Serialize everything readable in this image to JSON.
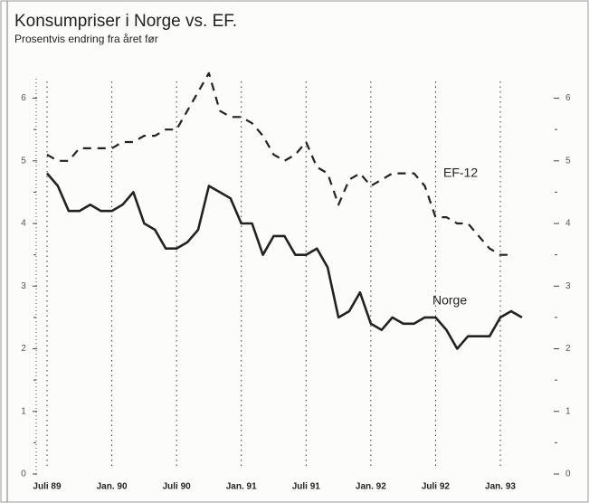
{
  "chart_data": {
    "type": "line",
    "title": "Konsumpriser i Norge vs. EF.",
    "subtitle": "Prosentvis endring fra året før",
    "categories": [
      "Juli 89",
      null,
      null,
      null,
      null,
      null,
      "Jan. 90",
      null,
      null,
      null,
      null,
      null,
      "Juli 90",
      null,
      null,
      null,
      null,
      null,
      "Jan. 91",
      null,
      null,
      null,
      null,
      null,
      "Juli 91",
      null,
      null,
      null,
      null,
      null,
      "Jan. 92",
      null,
      null,
      null,
      null,
      null,
      "Juli 92",
      null,
      null,
      null,
      null,
      null,
      "Jan. 93",
      null,
      null
    ],
    "series": [
      {
        "name": "EF-12",
        "color": "#222222",
        "dashed": true,
        "values": [
          5.1,
          5.0,
          5.0,
          5.2,
          5.2,
          5.2,
          5.2,
          5.3,
          5.3,
          5.4,
          5.4,
          5.5,
          5.5,
          5.8,
          6.1,
          6.4,
          5.8,
          5.7,
          5.7,
          5.6,
          5.4,
          5.1,
          5.0,
          5.1,
          5.3,
          4.9,
          4.8,
          4.3,
          4.7,
          4.8,
          4.6,
          4.7,
          4.8,
          4.8,
          4.8,
          4.6,
          4.1,
          4.1,
          4.0,
          4.0,
          3.8,
          3.6,
          3.5,
          3.5,
          null
        ]
      },
      {
        "name": "Norge",
        "color": "#222222",
        "dashed": false,
        "values": [
          4.8,
          4.6,
          4.2,
          4.2,
          4.3,
          4.2,
          4.2,
          4.3,
          4.5,
          4.0,
          3.9,
          3.6,
          3.6,
          3.7,
          3.9,
          4.6,
          4.5,
          4.4,
          4.0,
          4.0,
          3.5,
          3.8,
          3.8,
          3.5,
          3.5,
          3.6,
          3.3,
          2.5,
          2.6,
          2.9,
          2.4,
          2.3,
          2.5,
          2.4,
          2.4,
          2.5,
          2.5,
          2.3,
          2.0,
          2.2,
          2.2,
          2.2,
          2.5,
          2.6,
          2.5
        ]
      }
    ],
    "ylim": [
      0,
      6.6
    ],
    "yticks": [
      0,
      1,
      2,
      3,
      4,
      5,
      6
    ],
    "yminor": [
      0.5,
      1.5,
      2.5,
      3.5,
      4.5,
      5.5
    ],
    "right_axis": true
  }
}
